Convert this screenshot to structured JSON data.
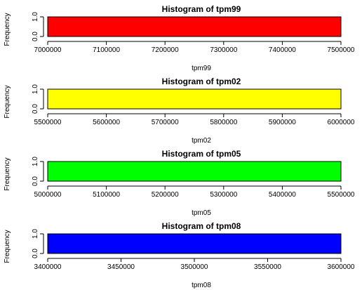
{
  "chart_data": [
    {
      "type": "bar",
      "title": "Histogram of tpm99",
      "xlabel": "tpm99",
      "ylabel": "Frequency",
      "bins": [
        {
          "start": 7000000,
          "end": 7500000,
          "count": 1
        }
      ],
      "xlim": [
        7000000,
        7500000
      ],
      "ylim": [
        0,
        1
      ],
      "xticks": [
        "7000000",
        "7100000",
        "7200000",
        "7300000",
        "7400000",
        "7500000"
      ],
      "yticks": [
        "0.0",
        "1.0"
      ],
      "color": "#ff0000"
    },
    {
      "type": "bar",
      "title": "Histogram of tpm02",
      "xlabel": "tpm02",
      "ylabel": "Frequency",
      "bins": [
        {
          "start": 5500000,
          "end": 6000000,
          "count": 1
        }
      ],
      "xlim": [
        5500000,
        6000000
      ],
      "ylim": [
        0,
        1
      ],
      "xticks": [
        "5500000",
        "5600000",
        "5700000",
        "5800000",
        "5900000",
        "6000000"
      ],
      "yticks": [
        "0.0",
        "1.0"
      ],
      "color": "#ffff00"
    },
    {
      "type": "bar",
      "title": "Histogram of tpm05",
      "xlabel": "tpm05",
      "ylabel": "Frequency",
      "bins": [
        {
          "start": 5000000,
          "end": 5500000,
          "count": 1
        }
      ],
      "xlim": [
        5000000,
        5500000
      ],
      "ylim": [
        0,
        1
      ],
      "xticks": [
        "5000000",
        "5100000",
        "5200000",
        "5300000",
        "5400000",
        "5500000"
      ],
      "yticks": [
        "0.0",
        "1.0"
      ],
      "color": "#00ff00"
    },
    {
      "type": "bar",
      "title": "Histogram of tpm08",
      "xlabel": "tpm08",
      "ylabel": "Frequency",
      "bins": [
        {
          "start": 3400000,
          "end": 3600000,
          "count": 1
        }
      ],
      "xlim": [
        3400000,
        3600000
      ],
      "ylim": [
        0,
        1
      ],
      "xticks": [
        "3400000",
        "3450000",
        "3500000",
        "3550000",
        "3600000"
      ],
      "yticks": [
        "0.0",
        "1.0"
      ],
      "color": "#0000ff"
    }
  ]
}
